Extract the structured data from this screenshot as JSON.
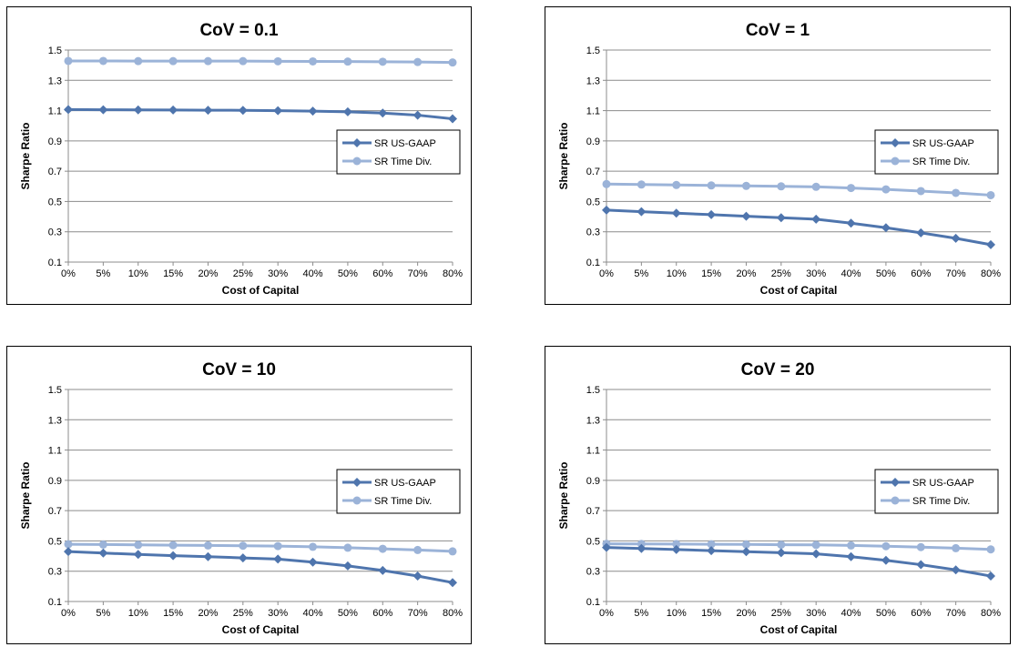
{
  "colors": {
    "sr_us_gaap": "#4f75ad",
    "sr_time_div": "#9bb3d8",
    "gridline": "#8c8c8c",
    "axis": "#8c8c8c"
  },
  "chart_data": [
    {
      "type": "line",
      "title": "CoV = 0.1",
      "xlabel": "Cost of Capital",
      "ylabel": "Sharpe Ratio",
      "ylim": [
        0.1,
        1.5
      ],
      "yticks": [
        "0.1",
        "0.3",
        "0.5",
        "0.7",
        "0.9",
        "1.1",
        "1.3",
        "1.5"
      ],
      "categories": [
        "0%",
        "5%",
        "10%",
        "15%",
        "20%",
        "25%",
        "30%",
        "40%",
        "50%",
        "60%",
        "70%",
        "80%"
      ],
      "grid": true,
      "legend_position": "right",
      "series": [
        {
          "name": "SR US-GAAP",
          "marker": "diamond",
          "values": [
            1.107,
            1.106,
            1.105,
            1.104,
            1.103,
            1.102,
            1.1,
            1.097,
            1.092,
            1.084,
            1.07,
            1.046
          ]
        },
        {
          "name": "SR Time Div.",
          "marker": "circle",
          "values": [
            1.428,
            1.428,
            1.427,
            1.427,
            1.427,
            1.427,
            1.426,
            1.425,
            1.424,
            1.423,
            1.421,
            1.418
          ]
        }
      ]
    },
    {
      "type": "line",
      "title": "CoV = 1",
      "xlabel": "Cost of Capital",
      "ylabel": "Sharpe Ratio",
      "ylim": [
        0.1,
        1.5
      ],
      "yticks": [
        "0.1",
        "0.3",
        "0.5",
        "0.7",
        "0.9",
        "1.1",
        "1.3",
        "1.5"
      ],
      "categories": [
        "0%",
        "5%",
        "10%",
        "15%",
        "20%",
        "25%",
        "30%",
        "40%",
        "50%",
        "60%",
        "70%",
        "80%"
      ],
      "grid": true,
      "legend_position": "right",
      "series": [
        {
          "name": "SR US-GAAP",
          "marker": "diamond",
          "values": [
            0.443,
            0.433,
            0.423,
            0.413,
            0.403,
            0.393,
            0.383,
            0.357,
            0.327,
            0.293,
            0.257,
            0.215
          ]
        },
        {
          "name": "SR Time Div.",
          "marker": "circle",
          "values": [
            0.615,
            0.612,
            0.609,
            0.606,
            0.603,
            0.6,
            0.597,
            0.589,
            0.58,
            0.569,
            0.557,
            0.542
          ]
        }
      ]
    },
    {
      "type": "line",
      "title": "CoV = 10",
      "xlabel": "Cost of Capital",
      "ylabel": "Sharpe Ratio",
      "ylim": [
        0.1,
        1.5
      ],
      "yticks": [
        "0.1",
        "0.3",
        "0.5",
        "0.7",
        "0.9",
        "1.1",
        "1.3",
        "1.5"
      ],
      "categories": [
        "0%",
        "5%",
        "10%",
        "15%",
        "20%",
        "25%",
        "30%",
        "40%",
        "50%",
        "60%",
        "70%",
        "80%"
      ],
      "grid": true,
      "legend_position": "right",
      "series": [
        {
          "name": "SR US-GAAP",
          "marker": "diamond",
          "values": [
            0.43,
            0.42,
            0.411,
            0.403,
            0.396,
            0.388,
            0.38,
            0.36,
            0.335,
            0.305,
            0.268,
            0.225
          ]
        },
        {
          "name": "SR Time Div.",
          "marker": "circle",
          "values": [
            0.478,
            0.476,
            0.474,
            0.472,
            0.47,
            0.468,
            0.466,
            0.461,
            0.455,
            0.448,
            0.44,
            0.431
          ]
        }
      ]
    },
    {
      "type": "line",
      "title": "CoV = 20",
      "xlabel": "Cost of Capital",
      "ylabel": "Sharpe Ratio",
      "ylim": [
        0.1,
        1.5
      ],
      "yticks": [
        "0.1",
        "0.3",
        "0.5",
        "0.7",
        "0.9",
        "1.1",
        "1.3",
        "1.5"
      ],
      "categories": [
        "0%",
        "5%",
        "10%",
        "15%",
        "20%",
        "25%",
        "30%",
        "40%",
        "50%",
        "60%",
        "70%",
        "80%"
      ],
      "grid": true,
      "legend_position": "right",
      "series": [
        {
          "name": "SR US-GAAP",
          "marker": "diamond",
          "values": [
            0.457,
            0.45,
            0.443,
            0.436,
            0.429,
            0.422,
            0.415,
            0.396,
            0.372,
            0.343,
            0.309,
            0.268
          ]
        },
        {
          "name": "SR Time Div.",
          "marker": "circle",
          "values": [
            0.481,
            0.48,
            0.479,
            0.478,
            0.477,
            0.475,
            0.474,
            0.47,
            0.465,
            0.459,
            0.452,
            0.444
          ]
        }
      ]
    }
  ]
}
